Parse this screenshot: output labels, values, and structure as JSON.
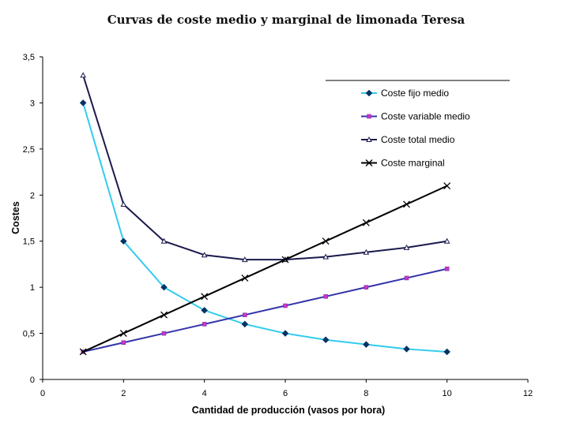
{
  "chart_data": {
    "type": "line",
    "title": "Curvas de coste medio y marginal de limonada Teresa",
    "xlabel": "Cantidad de producción (vasos por hora)",
    "ylabel": "Costes",
    "xlim": [
      0,
      12
    ],
    "ylim": [
      0,
      3.5
    ],
    "xticks": [
      "0",
      "2",
      "4",
      "6",
      "8",
      "10",
      "12"
    ],
    "yticks": [
      "0",
      "0,5",
      "1",
      "1,5",
      "2",
      "2,5",
      "3",
      "3,5"
    ],
    "grid": false,
    "legend_position": "right",
    "series": [
      {
        "name": "Coste fijo medio",
        "color": "#33CCEE",
        "marker": "diamond",
        "marker_color": "#003366",
        "x": [
          1,
          2,
          3,
          4,
          5,
          6,
          7,
          8,
          9,
          10
        ],
        "y": [
          3.0,
          1.5,
          1.0,
          0.75,
          0.6,
          0.5,
          0.43,
          0.38,
          0.33,
          0.3
        ]
      },
      {
        "name": "Coste variable medio",
        "color": "#3333AA",
        "marker": "square",
        "marker_color": "#CC33CC",
        "x": [
          1,
          2,
          3,
          4,
          5,
          6,
          7,
          8,
          9,
          10
        ],
        "y": [
          0.3,
          0.4,
          0.5,
          0.6,
          0.7,
          0.8,
          0.9,
          1.0,
          1.1,
          1.2
        ]
      },
      {
        "name": "Coste total medio",
        "color": "#1A1A4D",
        "marker": "triangle",
        "marker_color": "#1A1A4D",
        "x": [
          1,
          2,
          3,
          4,
          5,
          6,
          7,
          8,
          9,
          10
        ],
        "y": [
          3.3,
          1.9,
          1.5,
          1.35,
          1.3,
          1.3,
          1.33,
          1.38,
          1.43,
          1.5
        ]
      },
      {
        "name": "Coste marginal",
        "color": "#000000",
        "marker": "x",
        "marker_color": "#000000",
        "x": [
          1,
          2,
          3,
          4,
          5,
          6,
          7,
          8,
          9,
          10
        ],
        "y": [
          0.3,
          0.5,
          0.7,
          0.9,
          1.1,
          1.3,
          1.5,
          1.7,
          1.9,
          2.1
        ]
      }
    ]
  }
}
